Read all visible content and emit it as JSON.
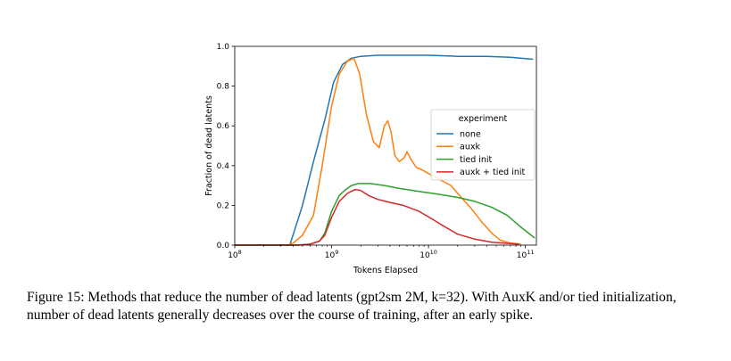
{
  "caption": {
    "text": "Figure 15: Methods that reduce the number of dead latents (gpt2sm 2M, k=32). With AuxK and/or tied initialization, number of dead latents generally decreases over the course of training, after an early spike."
  },
  "chart_data": {
    "type": "line",
    "title": "",
    "xlabel": "Tokens Elapsed",
    "ylabel": "Fraction of dead latents",
    "xscale": "log",
    "xlim": [
      100000000.0,
      130000000000.0
    ],
    "ylim": [
      0.0,
      1.0
    ],
    "grid": false,
    "x_ticks": [
      {
        "value": 100000000.0,
        "mantissa": "10",
        "exp": "8"
      },
      {
        "value": 1000000000.0,
        "mantissa": "10",
        "exp": "9"
      },
      {
        "value": 10000000000.0,
        "mantissa": "10",
        "exp": "10"
      },
      {
        "value": 100000000000.0,
        "mantissa": "10",
        "exp": "11"
      }
    ],
    "y_ticks": [
      {
        "value": 0.0,
        "label": "0.0"
      },
      {
        "value": 0.2,
        "label": "0.2"
      },
      {
        "value": 0.4,
        "label": "0.4"
      },
      {
        "value": 0.6,
        "label": "0.6"
      },
      {
        "value": 0.8,
        "label": "0.8"
      },
      {
        "value": 1.0,
        "label": "1.0"
      }
    ],
    "legend": {
      "title": "experiment",
      "position": "center-right"
    },
    "series": [
      {
        "name": "none",
        "color": "#1f77b4",
        "points": [
          [
            100000000.0,
            0.0
          ],
          [
            280000000.0,
            0.0
          ],
          [
            370000000.0,
            0.0
          ],
          [
            500000000.0,
            0.2
          ],
          [
            650000000.0,
            0.42
          ],
          [
            850000000.0,
            0.63
          ],
          [
            1050000000.0,
            0.82
          ],
          [
            1300000000.0,
            0.91
          ],
          [
            1600000000.0,
            0.94
          ],
          [
            2000000000.0,
            0.95
          ],
          [
            3000000000.0,
            0.955
          ],
          [
            6000000000.0,
            0.955
          ],
          [
            10000000000.0,
            0.955
          ],
          [
            20000000000.0,
            0.95
          ],
          [
            40000000000.0,
            0.95
          ],
          [
            70000000000.0,
            0.945
          ],
          [
            120000000000.0,
            0.935
          ]
        ]
      },
      {
        "name": "auxk",
        "color": "#ff7f0e",
        "points": [
          [
            100000000.0,
            0.0
          ],
          [
            350000000.0,
            0.0
          ],
          [
            400000000.0,
            0.01
          ],
          [
            500000000.0,
            0.05
          ],
          [
            650000000.0,
            0.15
          ],
          [
            800000000.0,
            0.4
          ],
          [
            1000000000.0,
            0.7
          ],
          [
            1200000000.0,
            0.86
          ],
          [
            1450000000.0,
            0.925
          ],
          [
            1700000000.0,
            0.94
          ],
          [
            1950000000.0,
            0.86
          ],
          [
            2300000000.0,
            0.65
          ],
          [
            2700000000.0,
            0.52
          ],
          [
            3100000000.0,
            0.49
          ],
          [
            3500000000.0,
            0.6
          ],
          [
            3800000000.0,
            0.625
          ],
          [
            4100000000.0,
            0.57
          ],
          [
            4500000000.0,
            0.45
          ],
          [
            5000000000.0,
            0.42
          ],
          [
            5600000000.0,
            0.44
          ],
          [
            6000000000.0,
            0.47
          ],
          [
            6600000000.0,
            0.43
          ],
          [
            7500000000.0,
            0.39
          ],
          [
            8500000000.0,
            0.38
          ],
          [
            10000000000.0,
            0.36
          ],
          [
            13000000000.0,
            0.33
          ],
          [
            17000000000.0,
            0.3
          ],
          [
            20000000000.0,
            0.26
          ],
          [
            27000000000.0,
            0.19
          ],
          [
            35000000000.0,
            0.12
          ],
          [
            45000000000.0,
            0.06
          ],
          [
            55000000000.0,
            0.025
          ],
          [
            70000000000.0,
            0.01
          ],
          [
            90000000000.0,
            0.005
          ]
        ]
      },
      {
        "name": "tied init",
        "color": "#2ca02c",
        "points": [
          [
            100000000.0,
            0.0
          ],
          [
            450000000.0,
            0.0
          ],
          [
            600000000.0,
            0.005
          ],
          [
            750000000.0,
            0.02
          ],
          [
            850000000.0,
            0.06
          ],
          [
            1000000000.0,
            0.17
          ],
          [
            1200000000.0,
            0.25
          ],
          [
            1400000000.0,
            0.28
          ],
          [
            1600000000.0,
            0.3
          ],
          [
            1900000000.0,
            0.31
          ],
          [
            2500000000.0,
            0.31
          ],
          [
            3500000000.0,
            0.3
          ],
          [
            5000000000.0,
            0.285
          ],
          [
            8000000000.0,
            0.27
          ],
          [
            13000000000.0,
            0.255
          ],
          [
            20000000000.0,
            0.24
          ],
          [
            30000000000.0,
            0.22
          ],
          [
            45000000000.0,
            0.19
          ],
          [
            65000000000.0,
            0.15
          ],
          [
            90000000000.0,
            0.09
          ],
          [
            115000000000.0,
            0.05
          ],
          [
            125000000000.0,
            0.035
          ]
        ]
      },
      {
        "name": "auxk + tied init",
        "color": "#d62728",
        "points": [
          [
            100000000.0,
            0.0
          ],
          [
            450000000.0,
            0.0
          ],
          [
            600000000.0,
            0.005
          ],
          [
            750000000.0,
            0.02
          ],
          [
            850000000.0,
            0.05
          ],
          [
            1000000000.0,
            0.14
          ],
          [
            1200000000.0,
            0.22
          ],
          [
            1450000000.0,
            0.26
          ],
          [
            1750000000.0,
            0.28
          ],
          [
            2000000000.0,
            0.275
          ],
          [
            2400000000.0,
            0.25
          ],
          [
            3000000000.0,
            0.23
          ],
          [
            4000000000.0,
            0.215
          ],
          [
            5500000000.0,
            0.2
          ],
          [
            8000000000.0,
            0.17
          ],
          [
            11000000000.0,
            0.13
          ],
          [
            15000000000.0,
            0.09
          ],
          [
            20000000000.0,
            0.055
          ],
          [
            30000000000.0,
            0.03
          ],
          [
            45000000000.0,
            0.015
          ],
          [
            70000000000.0,
            0.008
          ],
          [
            85000000000.0,
            0.005
          ]
        ]
      }
    ]
  }
}
